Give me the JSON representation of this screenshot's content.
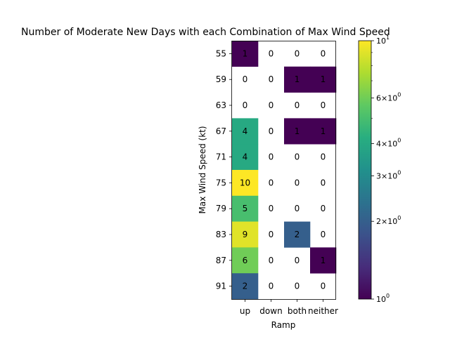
{
  "chart_data": {
    "type": "heatmap",
    "title": "Number of Moderate New Days with each Combination of Max Wind Speed",
    "xlabel": "Ramp",
    "ylabel": "Max Wind Speed (kt)",
    "x_categories": [
      "up",
      "down",
      "both",
      "neither"
    ],
    "y_categories": [
      "55",
      "59",
      "63",
      "67",
      "71",
      "75",
      "79",
      "83",
      "87",
      "91"
    ],
    "values": [
      [
        1,
        0,
        0,
        0
      ],
      [
        0,
        0,
        1,
        1
      ],
      [
        0,
        0,
        0,
        0
      ],
      [
        4,
        0,
        1,
        1
      ],
      [
        4,
        0,
        0,
        0
      ],
      [
        10,
        0,
        0,
        0
      ],
      [
        5,
        0,
        0,
        0
      ],
      [
        9,
        0,
        2,
        0
      ],
      [
        6,
        0,
        0,
        1
      ],
      [
        2,
        0,
        0,
        0
      ]
    ],
    "zero_cells": "blank",
    "colormap": "viridis",
    "color_scale": "log",
    "clim": [
      1,
      10
    ],
    "colorbar_ticks": [
      {
        "value": 1,
        "label": "10^0"
      },
      {
        "value": 2,
        "label": "2×10^0"
      },
      {
        "value": 3,
        "label": "3×10^0"
      },
      {
        "value": 4,
        "label": "4×10^0"
      },
      {
        "value": 6,
        "label": "6×10^0"
      },
      {
        "value": 10,
        "label": "10^1"
      }
    ],
    "colorbar_minor_ticks": [
      5,
      7,
      8,
      9
    ],
    "grid": false
  }
}
